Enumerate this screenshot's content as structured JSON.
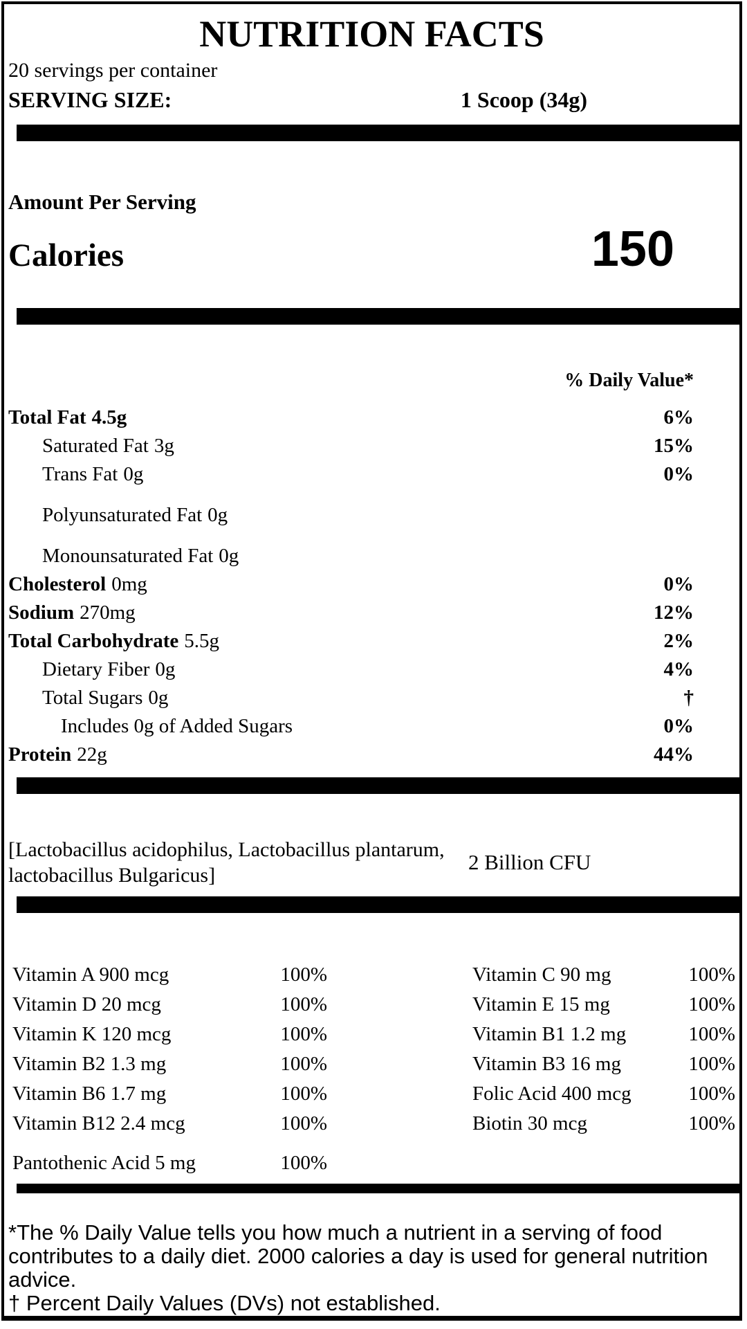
{
  "header": {
    "title": "NUTRITION FACTS",
    "servings_per_container": "20 servings per container",
    "serving_size_label": "SERVING SIZE:",
    "serving_size_value": "1 Scoop (34g)"
  },
  "calories": {
    "amount_per_serving_label": "Amount Per Serving",
    "label": "Calories",
    "value": "150"
  },
  "daily_value_header": "% Daily Value*",
  "nutrients": [
    {
      "name": "Total Fat",
      "amount": "4.5g",
      "dv": "6%"
    },
    {
      "name": "Saturated Fat",
      "amount": "3g",
      "dv": "15%"
    },
    {
      "name": "Trans Fat",
      "amount": "0g",
      "dv": "0%"
    },
    {
      "name": "Polyunsaturated Fat",
      "amount": "0g",
      "dv": ""
    },
    {
      "name": "Monounsaturated Fat",
      "amount": "0g",
      "dv": ""
    },
    {
      "name": "Cholesterol",
      "amount": "0mg",
      "dv": "0%"
    },
    {
      "name": "Sodium",
      "amount": "270mg",
      "dv": "12%"
    },
    {
      "name": "Total Carbohydrate",
      "amount": "5.5g",
      "dv": "2%"
    },
    {
      "name": "Dietary Fiber",
      "amount": "0g",
      "dv": "4%"
    },
    {
      "name": "Total Sugars",
      "amount": "0g",
      "dv": "†"
    },
    {
      "name": "Includes 0g of Added Sugars",
      "amount": "",
      "dv": "0%"
    },
    {
      "name": "Protein",
      "amount": "22g",
      "dv": "44%"
    }
  ],
  "probiotics": {
    "text": "[Lactobacillus acidophilus, Lactobacillus plantarum, lactobacillus Bulgaricus]",
    "value": "2 Billion CFU"
  },
  "vitamins": {
    "left": [
      {
        "name": "Vitamin A 900 mcg",
        "dv": "100%"
      },
      {
        "name": "Vitamin D 20 mcg",
        "dv": "100%"
      },
      {
        "name": "Vitamin K 120 mcg",
        "dv": "100%"
      },
      {
        "name": "Vitamin B2 1.3 mg",
        "dv": "100%"
      },
      {
        "name": "Vitamin B6 1.7 mg",
        "dv": "100%"
      },
      {
        "name": "Vitamin B12 2.4 mcg",
        "dv": "100%"
      },
      {
        "name": "Pantothenic Acid 5 mg",
        "dv": "100%"
      }
    ],
    "right": [
      {
        "name": "Vitamin C 90 mg",
        "dv": "100%"
      },
      {
        "name": "Vitamin E 15 mg",
        "dv": "100%"
      },
      {
        "name": "Vitamin B1 1.2 mg",
        "dv": "100%"
      },
      {
        "name": "Vitamin B3 16 mg",
        "dv": "100%"
      },
      {
        "name": "Folic Acid 400 mcg",
        "dv": "100%"
      },
      {
        "name": "Biotin 30 mcg",
        "dv": "100%"
      }
    ]
  },
  "footnotes": {
    "daily_value": "*The % Daily Value tells you how much a nutrient in a serving of food contributes to a daily diet. 2000 calories a day is used for general nutrition advice.",
    "dagger": "† Percent Daily Values (DVs) not established."
  }
}
